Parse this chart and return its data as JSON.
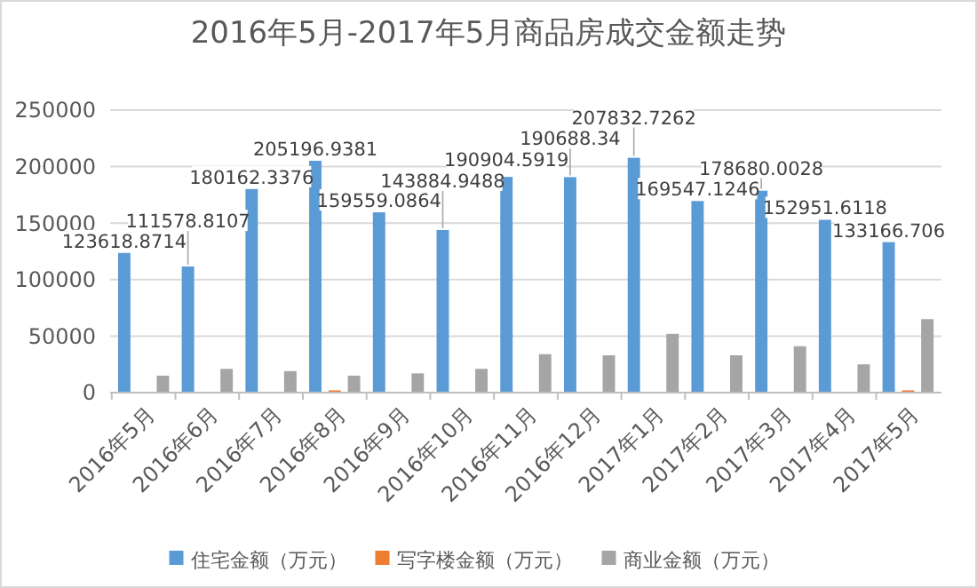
{
  "chart_data": {
    "type": "bar",
    "title": "2016年5月-2017年5月商品房成交金额走势",
    "categories": [
      "2016年5月",
      "2016年6月",
      "2016年7月",
      "2016年8月",
      "2016年9月",
      "2016年10月",
      "2016年11月",
      "2016年12月",
      "2017年1月",
      "2017年2月",
      "2017年3月",
      "2017年4月",
      "2017年5月"
    ],
    "series": [
      {
        "name": "住宅金额（万元）",
        "color": "#5b9bd5",
        "values": [
          123618.8714,
          111578.8107,
          180162.3376,
          205196.9381,
          159559.0864,
          143884.9488,
          190904.5919,
          190688.34,
          207832.7262,
          169547.1246,
          178680.0028,
          152951.6118,
          133166.706
        ],
        "data_labels": true
      },
      {
        "name": "写字楼金额（万元）",
        "color": "#ed7d31",
        "values": [
          0,
          0,
          0,
          2000,
          0,
          0,
          0,
          0,
          0,
          0,
          0,
          0,
          2000
        ]
      },
      {
        "name": "商业金额（万元）",
        "color": "#a5a5a5",
        "values": [
          15000,
          21000,
          19000,
          15000,
          17000,
          21000,
          34000,
          33000,
          52000,
          33000,
          41000,
          25000,
          65000
        ]
      }
    ],
    "ylim": [
      0,
      250000
    ],
    "yticks": [
      0,
      50000,
      100000,
      150000,
      200000,
      250000
    ],
    "grid": "y",
    "legend": "bottom"
  }
}
